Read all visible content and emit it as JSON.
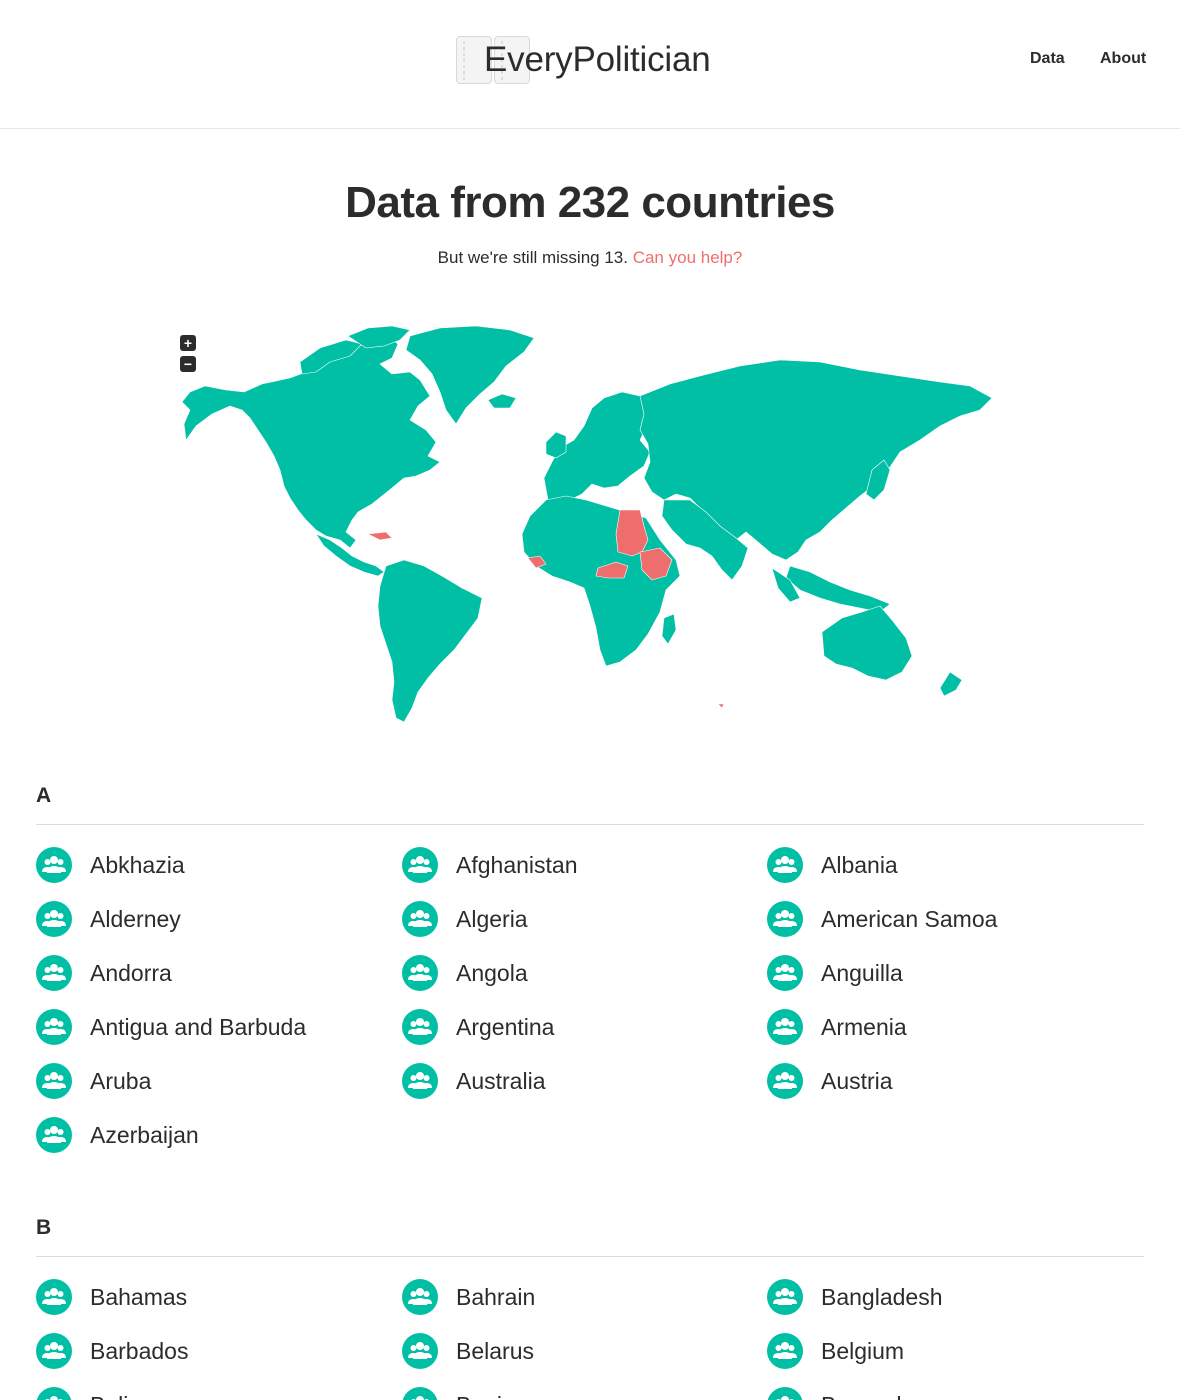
{
  "header": {
    "logo_text": "EveryPolitician",
    "nav": [
      {
        "label": "Data"
      },
      {
        "label": "About"
      }
    ]
  },
  "hero": {
    "title": "Data from 232 countries",
    "subtitle_prefix": "But we're still missing 13.",
    "help_link": "Can you help?"
  },
  "map": {
    "zoom_in": "+",
    "zoom_out": "−",
    "colors": {
      "covered": "#00bfa5",
      "missing": "#ee6e6e"
    }
  },
  "sections": [
    {
      "letter": "A",
      "countries": [
        "Abkhazia",
        "Afghanistan",
        "Albania",
        "Alderney",
        "Algeria",
        "American Samoa",
        "Andorra",
        "Angola",
        "Anguilla",
        "Antigua and Barbuda",
        "Argentina",
        "Armenia",
        "Aruba",
        "Australia",
        "Austria",
        "Azerbaijan"
      ]
    },
    {
      "letter": "B",
      "countries": [
        "Bahamas",
        "Bahrain",
        "Bangladesh",
        "Barbados",
        "Belarus",
        "Belgium",
        "Belize",
        "Benin",
        "Bermuda"
      ]
    }
  ]
}
